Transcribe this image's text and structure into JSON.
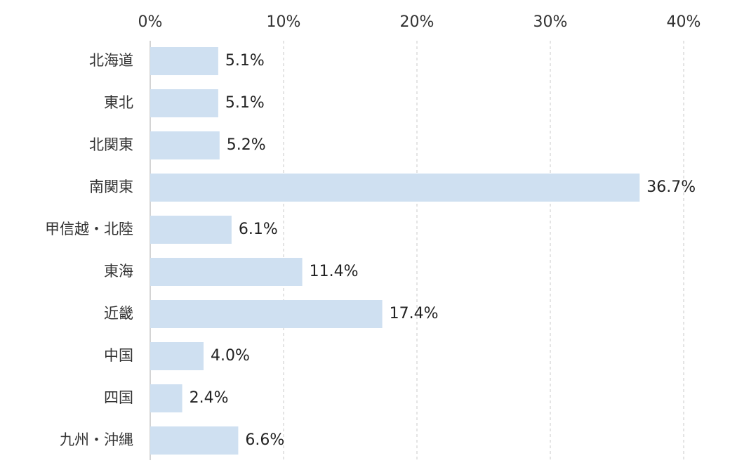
{
  "chart_data": {
    "type": "bar",
    "orientation": "horizontal",
    "categories": [
      "北海道",
      "東北",
      "北関東",
      "南関東",
      "甲信越・北陸",
      "東海",
      "近畿",
      "中国",
      "四国",
      "九州・沖縄"
    ],
    "values": [
      5.1,
      5.1,
      5.2,
      36.7,
      6.1,
      11.4,
      17.4,
      4.0,
      2.4,
      6.6
    ],
    "value_labels": [
      "5.1%",
      "5.1%",
      "5.2%",
      "36.7%",
      "6.1%",
      "11.4%",
      "17.4%",
      "4.0%",
      "2.4%",
      "6.6%"
    ],
    "xlim": [
      0,
      40
    ],
    "x_ticks": [
      0,
      10,
      20,
      30,
      40
    ],
    "x_tick_labels": [
      "0%",
      "10%",
      "20%",
      "30%",
      "40%"
    ],
    "x_axis_position": "top",
    "grid": "vertical-dashed",
    "legend": "none",
    "title": "",
    "xlabel": "",
    "ylabel": "",
    "colors": {
      "bar": "#cfe0f1",
      "grid": "#c8c8c8",
      "axis": "#aaaaaa",
      "text": "#333333"
    }
  }
}
